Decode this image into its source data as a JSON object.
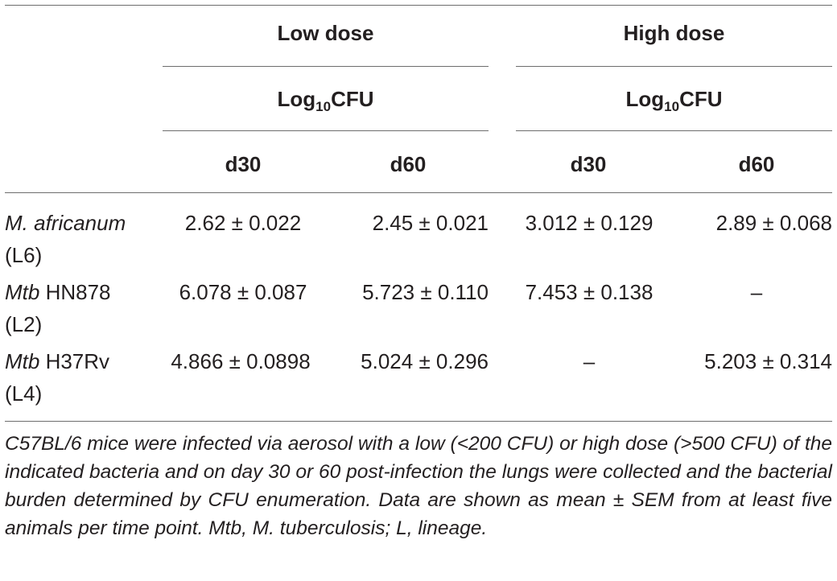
{
  "header": {
    "groups": [
      {
        "label": "Low dose",
        "unit_prefix": "Log",
        "unit_sub": "10",
        "unit_suffix": "CFU"
      },
      {
        "label": "High dose",
        "unit_prefix": "Log",
        "unit_sub": "10",
        "unit_suffix": "CFU"
      }
    ],
    "days": [
      "d30",
      "d60",
      "d30",
      "d60"
    ]
  },
  "rows": [
    {
      "name_italic": "M. africanum",
      "name_rest": "",
      "lineage": "(L6)",
      "values": [
        "2.62 ± 0.022",
        "2.45 ± 0.021",
        "3.012 ± 0.129",
        "2.89 ± 0.068"
      ]
    },
    {
      "name_italic": "Mtb",
      "name_rest": " HN878",
      "lineage": "(L2)",
      "values": [
        "6.078 ± 0.087",
        "5.723 ± 0.110",
        "7.453 ± 0.138",
        "–"
      ]
    },
    {
      "name_italic": "Mtb",
      "name_rest": " H37Rv",
      "lineage": "(L4)",
      "values": [
        "4.866 ± 0.0898",
        "5.024 ± 0.296",
        "–",
        "5.203 ± 0.314"
      ]
    }
  ],
  "footnote": "C57BL/6 mice were infected via aerosol with a low (<200 CFU) or high dose (>500 CFU) of the indicated bacteria and on day 30 or 60 post-infection the lungs were collected and the bacterial burden determined by CFU enumeration. Data are shown as mean ± SEM from at least five animals per time point. Mtb, M. tuberculosis; L, lineage."
}
